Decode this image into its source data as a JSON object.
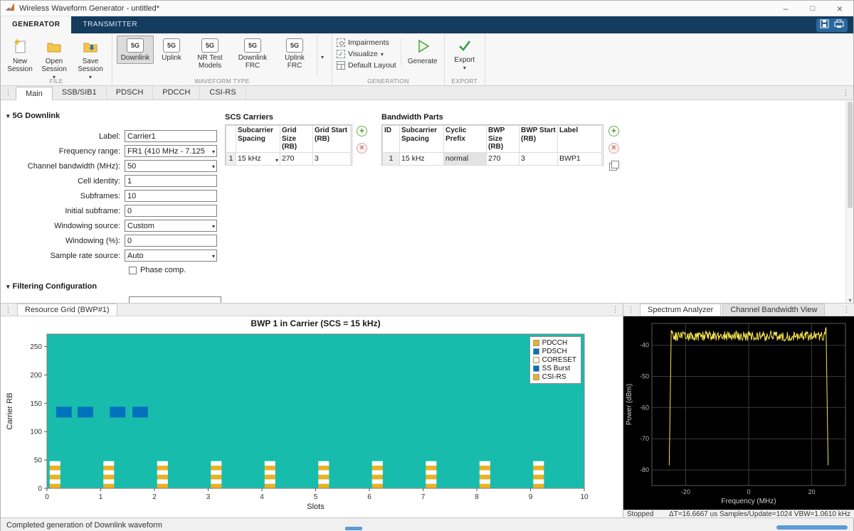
{
  "titlebar": {
    "title": "Wireless Waveform Generator - untitled*"
  },
  "toolstrip": {
    "tabs": [
      {
        "label": "GENERATOR"
      },
      {
        "label": "TRANSMITTER"
      }
    ],
    "sections": {
      "file": {
        "label": "FILE",
        "new": "New Session",
        "open": "Open Session",
        "save": "Save Session"
      },
      "waveform": {
        "label": "WAVEFORM TYPE",
        "badge": "5G",
        "buttons": [
          "Downlink",
          "Uplink",
          "NR Test Models",
          "Downlink FRC",
          "Uplink FRC"
        ],
        "selected": "Downlink"
      },
      "generation": {
        "label": "GENERATION",
        "impairments": "Impairments",
        "visualize": "Visualize",
        "default_layout": "Default Layout",
        "generate": "Generate"
      },
      "export": {
        "label": "EXPORT",
        "export": "Export"
      }
    }
  },
  "doc_tabs": {
    "tabs": [
      "Main",
      "SSB/SIB1",
      "PDSCH",
      "PDCCH",
      "CSI-RS"
    ]
  },
  "config": {
    "section_title": "5G Downlink",
    "fields": [
      {
        "label": "Label:",
        "value": "Carrier1"
      },
      {
        "label": "Frequency range:",
        "value": "FR1 (410 MHz - 7.125 GHz)"
      },
      {
        "label": "Channel bandwidth (MHz):",
        "value": "50"
      },
      {
        "label": "Cell identity:",
        "value": "1"
      },
      {
        "label": "Subframes:",
        "value": "10"
      },
      {
        "label": "Initial subframe:",
        "value": "0"
      },
      {
        "label": "Windowing source:",
        "value": "Custom"
      },
      {
        "label": "Windowing (%):",
        "value": "0"
      },
      {
        "label": "Sample rate source:",
        "value": "Auto"
      }
    ],
    "phase_comp": "Phase comp.",
    "filtering_title": "Filtering Configuration"
  },
  "scs_carriers": {
    "title": "SCS Carriers",
    "headers": [
      "Subcarrier Spacing",
      "Grid Size (RB)",
      "Grid Start (RB)"
    ],
    "row": {
      "num": "1",
      "spacing": "15 kHz",
      "grid_size": "270",
      "grid_start": "3"
    }
  },
  "bandwidth_parts": {
    "title": "Bandwidth Parts",
    "headers": [
      "ID",
      "Subcarrier Spacing",
      "Cyclic Prefix",
      "BWP Size (RB)",
      "BWP Start (RB)",
      "Label"
    ],
    "row": {
      "id": "1",
      "spacing": "15 kHz",
      "prefix": "normal",
      "size": "270",
      "start": "3",
      "label": "BWP1"
    }
  },
  "resource_panel": {
    "tab": "Resource Grid (BWP#1)"
  },
  "spectrum_panel": {
    "tabs": [
      "Spectrum Analyzer",
      "Channel Bandwidth View"
    ],
    "status_left": "Stopped",
    "status_right": "ΔT=16.6667 us  Samples/Update=1024  VBW=1.0610 kHz"
  },
  "statusbar": {
    "message": "Completed generation of Downlink waveform"
  },
  "accent_colors": {
    "toolstrip_blue": "#143C5F",
    "matlab_yellow": "#EDB120",
    "matlab_blue": "#0072BD",
    "grid_teal": "#18BCAC",
    "trace_yellow": "#F7E34D"
  },
  "icons": [
    "matlab-logo-icon",
    "new-session-icon",
    "open-session-icon",
    "save-session-icon",
    "5g-badge-icon",
    "impairments-icon",
    "visualize-icon",
    "default-layout-icon",
    "generate-play-icon",
    "export-check-icon",
    "add-row-icon",
    "delete-row-icon",
    "copy-row-icon",
    "chevron-down-icon",
    "kebab-menu-icon",
    "save-quick-icon",
    "print-quick-icon",
    "minimize-icon",
    "maximize-icon",
    "close-icon"
  ],
  "chart_data": [
    {
      "type": "heatmap",
      "title": "BWP 1 in Carrier (SCS = 15 kHz)",
      "xlabel": "Slots",
      "ylabel": "Carrier RB",
      "xlim": [
        0,
        10
      ],
      "ylim": [
        0,
        272
      ],
      "xticks": [
        0,
        1,
        2,
        3,
        4,
        5,
        6,
        7,
        8,
        9,
        10
      ],
      "yticks": [
        0,
        50,
        100,
        150,
        200,
        250
      ],
      "grid_color": "#18BCAC",
      "legend": [
        {
          "label": "PDCCH",
          "color": "#EDB120"
        },
        {
          "label": "PDSCH",
          "color": "#0072BD"
        },
        {
          "label": "CORESET",
          "color": "#FCF2D4"
        },
        {
          "label": "SS Burst",
          "color": "#0072BD"
        },
        {
          "label": "CSI-RS",
          "color": "#EDB120"
        }
      ],
      "ss_burst_blocks": [
        {
          "x": 0.17,
          "w": 0.29,
          "y": 125,
          "h": 19
        },
        {
          "x": 0.57,
          "w": 0.29,
          "y": 125,
          "h": 19
        },
        {
          "x": 1.17,
          "w": 0.29,
          "y": 125,
          "h": 19
        },
        {
          "x": 1.59,
          "w": 0.29,
          "y": 125,
          "h": 19
        }
      ],
      "csi_columns": {
        "slots": [
          0,
          1,
          2,
          3,
          4,
          5,
          6,
          7,
          8,
          9
        ],
        "x_offset": 0.05,
        "width": 0.2,
        "cell_rb": 8,
        "pattern": [
          "#EDB120",
          "#FFFFFF",
          "#EDB120",
          "#FFFFFF",
          "#EDB120",
          "#FFFFFF"
        ]
      }
    },
    {
      "type": "line",
      "xlabel": "Frequency (MHz)",
      "ylabel": "Power (dBm)",
      "xlim": [
        -30.72,
        30.72
      ],
      "ylim": [
        -85,
        -33
      ],
      "xticks": [
        -20,
        0,
        20
      ],
      "yticks": [
        -40,
        -50,
        -60,
        -70,
        -80
      ],
      "background": "#000000",
      "trace_color": "#F7E34D",
      "passband": {
        "level": -37,
        "edge": 24.6,
        "noise": 1.6
      }
    }
  ]
}
